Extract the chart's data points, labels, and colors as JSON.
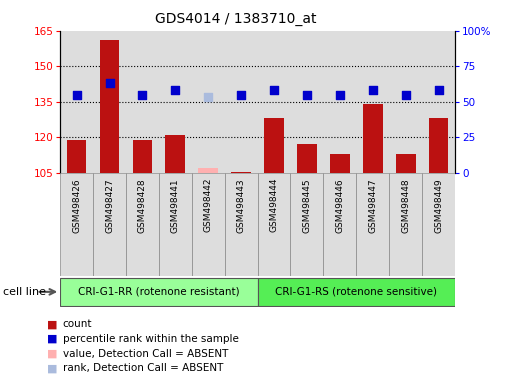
{
  "title": "GDS4014 / 1383710_at",
  "samples": [
    "GSM498426",
    "GSM498427",
    "GSM498428",
    "GSM498441",
    "GSM498442",
    "GSM498443",
    "GSM498444",
    "GSM498445",
    "GSM498446",
    "GSM498447",
    "GSM498448",
    "GSM498449"
  ],
  "count_values": [
    119,
    161,
    119,
    121,
    107,
    105.5,
    128,
    117,
    113,
    134,
    113,
    128
  ],
  "count_absent": [
    false,
    false,
    false,
    false,
    true,
    false,
    false,
    false,
    false,
    false,
    false,
    false
  ],
  "rank_values": [
    138,
    143,
    138,
    140,
    137,
    138,
    140,
    138,
    138,
    140,
    138,
    140
  ],
  "rank_absent": [
    false,
    false,
    false,
    false,
    true,
    false,
    false,
    false,
    false,
    false,
    false,
    false
  ],
  "group1_label": "CRI-G1-RR (rotenone resistant)",
  "group2_label": "CRI-G1-RS (rotenone sensitive)",
  "group1_count": 6,
  "group2_count": 6,
  "ylim_left": [
    105,
    165
  ],
  "ylim_right": [
    0,
    100
  ],
  "yticks_left": [
    105,
    120,
    135,
    150,
    165
  ],
  "yticks_right": [
    0,
    25,
    50,
    75,
    100
  ],
  "ytick_labels_right": [
    "0",
    "25",
    "50",
    "75",
    "100%"
  ],
  "bar_color_normal": "#BB1111",
  "bar_color_absent": "#FFB0B0",
  "rank_color_normal": "#0000CC",
  "rank_color_absent": "#AABBDD",
  "group1_color": "#99FF99",
  "group2_color": "#55EE55",
  "col_bg_color": "#DDDDDD",
  "legend_items": [
    {
      "label": "count",
      "color": "#BB1111"
    },
    {
      "label": "percentile rank within the sample",
      "color": "#0000CC"
    },
    {
      "label": "value, Detection Call = ABSENT",
      "color": "#FFB0B0"
    },
    {
      "label": "rank, Detection Call = ABSENT",
      "color": "#AABBDD"
    }
  ],
  "bar_width": 0.6,
  "rank_marker_size": 40
}
